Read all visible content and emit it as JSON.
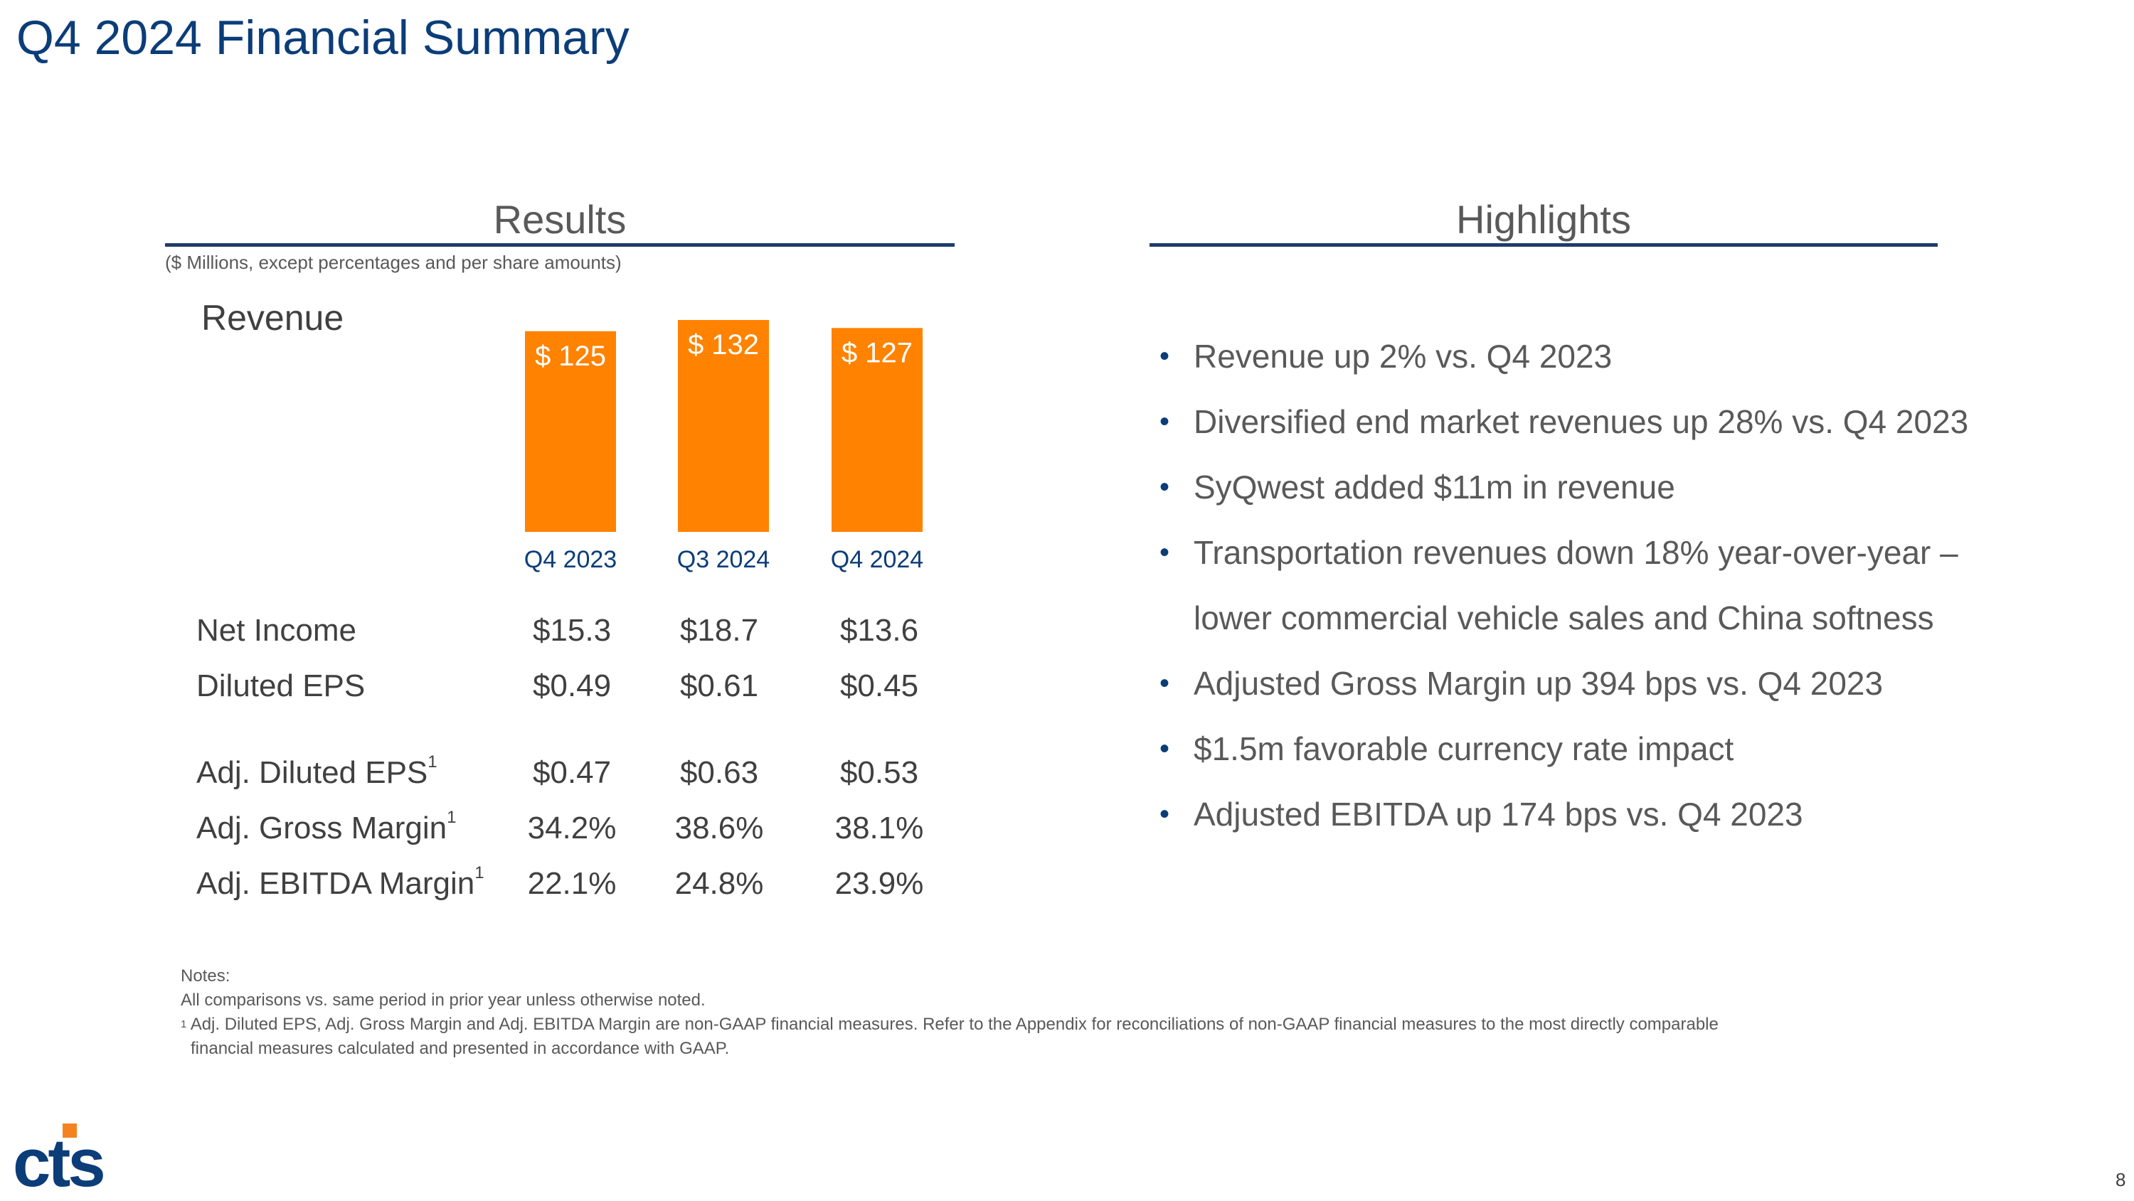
{
  "title": "Q4 2024 Financial Summary",
  "results": {
    "heading": "Results",
    "units_note": "($ Millions, except percentages and per share amounts)",
    "revenue_label": "Revenue",
    "metrics": [
      {
        "label": "Net Income",
        "footnote": "",
        "values": [
          "$15.3",
          "$18.7",
          "$13.6"
        ]
      },
      {
        "label": "Diluted EPS",
        "footnote": "",
        "values": [
          "$0.49",
          "$0.61",
          "$0.45"
        ]
      },
      {
        "label": "Adj. Diluted EPS",
        "footnote": "1",
        "values": [
          "$0.47",
          "$0.63",
          "$0.53"
        ]
      },
      {
        "label": "Adj. Gross Margin",
        "footnote": "1",
        "values": [
          "34.2%",
          "38.6%",
          "38.1%"
        ]
      },
      {
        "label": "Adj. EBITDA Margin",
        "footnote": "1",
        "values": [
          "22.1%",
          "24.8%",
          "23.9%"
        ]
      }
    ]
  },
  "chart_data": {
    "type": "bar",
    "categories": [
      "Q4 2023",
      "Q3 2024",
      "Q4 2024"
    ],
    "values": [
      125,
      132,
      127
    ],
    "data_labels": [
      "$ 125",
      "$ 132",
      "$ 127"
    ],
    "title": "Revenue",
    "bar_color": "#ff8200",
    "category_label_color": "#0b3d78",
    "data_label_color": "#ffffff"
  },
  "highlights": {
    "heading": "Highlights",
    "items": [
      "Revenue up 2% vs. Q4 2023",
      "Diversified end market revenues up 28% vs. Q4 2023",
      "SyQwest added $11m in revenue",
      "Transportation revenues down 18% year-over-year – lower commercial vehicle sales and China softness",
      "Adjusted Gross Margin up 394 bps vs. Q4 2023",
      "$1.5m favorable currency rate impact",
      "Adjusted EBITDA up 174 bps vs. Q4 2023"
    ]
  },
  "notes": {
    "heading": "Notes:",
    "line1": "All comparisons vs. same period in prior year unless otherwise noted.",
    "footnote_marker": "1",
    "line2": "Adj. Diluted EPS, Adj. Gross Margin and Adj. EBITDA Margin are non-GAAP financial measures. Refer to the Appendix for reconciliations of non-GAAP financial measures to the most directly comparable",
    "line3": "financial measures calculated and presented in accordance with GAAP."
  },
  "logo_text": "cts",
  "page_number": "8",
  "colors": {
    "title": "#0b3d78",
    "accent_orange": "#ff8200",
    "rule": "#1f3d6b"
  }
}
